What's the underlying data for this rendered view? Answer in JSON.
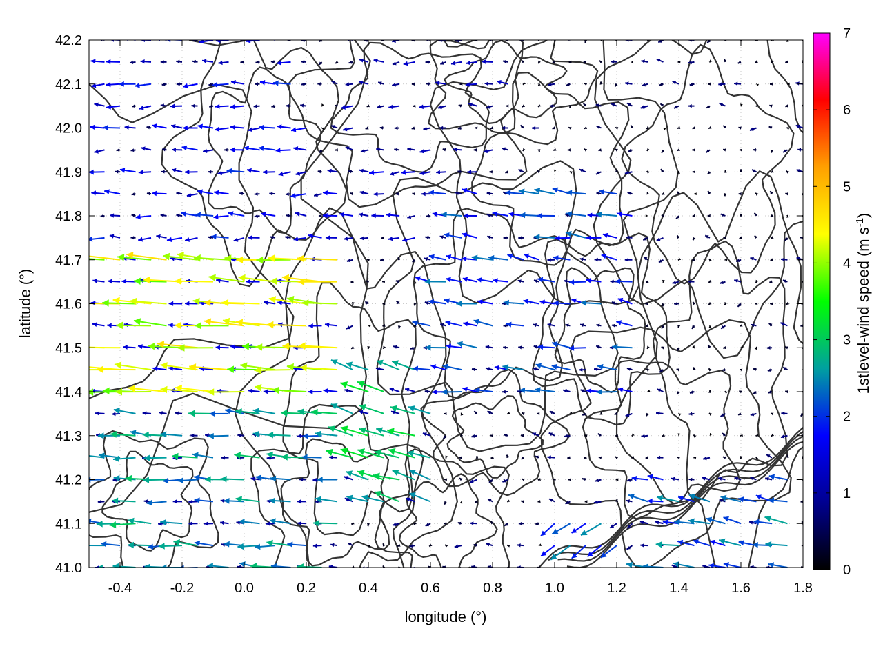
{
  "chart_data": {
    "type": "vector field with contours",
    "xlabel": "longitude (°)",
    "ylabel": "latitude (°)",
    "xlim": [
      -0.5,
      1.8
    ],
    "ylim": [
      41.0,
      42.2
    ],
    "x_ticks": [
      "-0.4",
      "-0.2",
      "0.0",
      "0.2",
      "0.4",
      "0.6",
      "0.8",
      "1.0",
      "1.2",
      "1.4",
      "1.6",
      "1.8"
    ],
    "y_ticks": [
      "41.0",
      "41.1",
      "41.2",
      "41.3",
      "41.4",
      "41.5",
      "41.6",
      "41.7",
      "41.8",
      "41.9",
      "42.0",
      "42.1",
      "42.2"
    ],
    "grid": true,
    "colorbar": {
      "title_main": "1stlevel-wind speed (m s",
      "title_sup": "-1",
      "title_end": ")",
      "range": [
        0,
        7
      ],
      "ticks": [
        "0",
        "1",
        "2",
        "3",
        "4",
        "5",
        "6",
        "7"
      ],
      "palette": [
        "#000000",
        "#000090",
        "#0000ff",
        "#00a0a0",
        "#00ff00",
        "#ffff00",
        "#ffa000",
        "#ff0000",
        "#ff00ff"
      ]
    },
    "wind_regions": [
      {
        "lon": [
          -0.5,
          0.3
        ],
        "lat": [
          41.35,
          41.7
        ],
        "u": -4.2,
        "v": 0.2
      },
      {
        "lon": [
          -0.5,
          0.3
        ],
        "lat": [
          41.0,
          41.35
        ],
        "u": -2.6,
        "v": 0.1
      },
      {
        "lon": [
          0.3,
          0.6
        ],
        "lat": [
          41.1,
          41.45
        ],
        "u": -2.8,
        "v": 0.6
      },
      {
        "lon": [
          -0.5,
          0.2
        ],
        "lat": [
          41.7,
          42.2
        ],
        "u": -1.6,
        "v": 0.0
      },
      {
        "lon": [
          0.6,
          1.3
        ],
        "lat": [
          41.35,
          41.85
        ],
        "u": -2.0,
        "v": 0.2
      },
      {
        "lon": [
          1.3,
          1.8
        ],
        "lat": [
          41.0,
          41.2
        ],
        "u": -2.2,
        "v": 0.3
      },
      {
        "lon": [
          1.0,
          1.3
        ],
        "lat": [
          41.0,
          41.1
        ],
        "u": -2.0,
        "v": -1.0
      },
      {
        "lon": [
          0.3,
          0.9
        ],
        "lat": [
          41.85,
          42.2
        ],
        "u": -1.0,
        "v": 0.0
      },
      {
        "lon": [
          0.2,
          0.6
        ],
        "lat": [
          41.7,
          41.9
        ],
        "u": -1.3,
        "v": 0.0
      }
    ],
    "background_wind": {
      "u": -0.4,
      "v": 0.0
    }
  }
}
